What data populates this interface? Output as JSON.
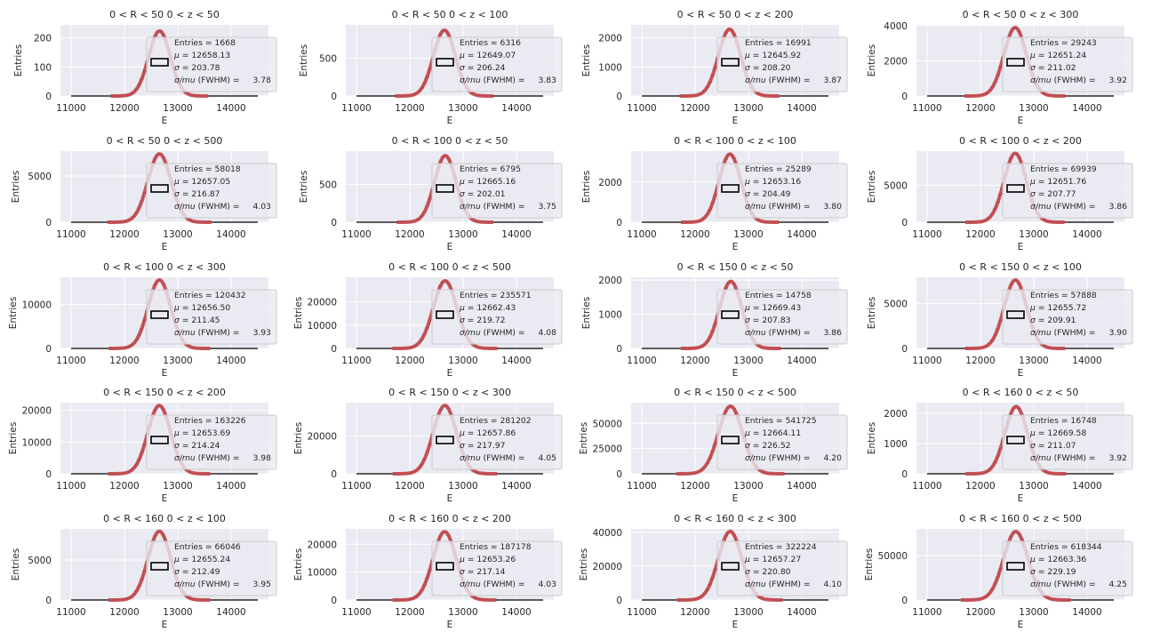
{
  "colors": {
    "plot_background": "#EAEAF2",
    "grid": "#FFFFFF",
    "histogram": "#000000",
    "fit": "#C44E52",
    "legend_box": "#000000",
    "text": "#262626"
  },
  "chart_data": [
    {
      "type": "histogram",
      "title": "0 < R < 50 0 < z < 50",
      "xlabel": "E",
      "ylabel": "Entries",
      "xlim": [
        10800,
        14700
      ],
      "xticks": [
        11000,
        12000,
        13000,
        14000
      ],
      "ylim": [
        0,
        245
      ],
      "yticks": [
        0,
        100,
        200
      ],
      "grid": true,
      "legend_placement": "right",
      "legend": {
        "entries_label": "Entries = 1668",
        "mu_label": "= 12658.13",
        "sigma_label": "= 203.78",
        "res_label": "(FWHM) =",
        "res_value": "3.78"
      },
      "fit": {
        "mu": 12658.13,
        "sigma": 203.78,
        "peak": 224
      }
    },
    {
      "type": "histogram",
      "title": "0 < R < 50 0 < z < 100",
      "xlabel": "E",
      "ylabel": "Entries",
      "xlim": [
        10800,
        14700
      ],
      "xticks": [
        11000,
        12000,
        13000,
        14000
      ],
      "ylim": [
        0,
        940
      ],
      "yticks": [
        0,
        500
      ],
      "grid": true,
      "legend_placement": "right",
      "legend": {
        "entries_label": "Entries = 6316",
        "mu_label": "= 12649.07",
        "sigma_label": "= 206.24",
        "res_label": "(FWHM) =",
        "res_value": "3.83"
      },
      "fit": {
        "mu": 12649.07,
        "sigma": 206.24,
        "peak": 870
      }
    },
    {
      "type": "histogram",
      "title": "0 < R < 50 0 < z < 200",
      "xlabel": "E",
      "ylabel": "Entries",
      "xlim": [
        10800,
        14700
      ],
      "xticks": [
        11000,
        12000,
        13000,
        14000
      ],
      "ylim": [
        0,
        2450
      ],
      "yticks": [
        0,
        1000,
        2000
      ],
      "grid": true,
      "legend_placement": "right",
      "legend": {
        "entries_label": "Entries = 16991",
        "mu_label": "= 12645.92",
        "sigma_label": "= 208.20",
        "res_label": "(FWHM) =",
        "res_value": "3.87"
      },
      "fit": {
        "mu": 12645.92,
        "sigma": 208.2,
        "peak": 2300
      }
    },
    {
      "type": "histogram",
      "title": "0 < R < 50 0 < z < 300",
      "xlabel": "E",
      "ylabel": "Entries",
      "xlim": [
        10800,
        14700
      ],
      "xticks": [
        11000,
        12000,
        13000,
        14000
      ],
      "ylim": [
        0,
        4050
      ],
      "yticks": [
        0,
        2000,
        4000
      ],
      "grid": true,
      "legend_placement": "right",
      "legend": {
        "entries_label": "Entries = 29243",
        "mu_label": "= 12651.24",
        "sigma_label": "= 211.02",
        "res_label": "(FWHM) =",
        "res_value": "3.92"
      },
      "fit": {
        "mu": 12651.24,
        "sigma": 211.02,
        "peak": 3900
      }
    },
    {
      "type": "histogram",
      "title": "0 < R < 50 0 < z < 500",
      "xlabel": "E",
      "ylabel": "Entries",
      "xlim": [
        10800,
        14700
      ],
      "xticks": [
        11000,
        12000,
        13000,
        14000
      ],
      "ylim": [
        0,
        7700
      ],
      "yticks": [
        0,
        5000
      ],
      "grid": true,
      "legend_placement": "right",
      "legend": {
        "entries_label": "Entries = 58018",
        "mu_label": "= 12657.05",
        "sigma_label": "= 216.87",
        "res_label": "(FWHM) =",
        "res_value": "4.03"
      },
      "fit": {
        "mu": 12657.05,
        "sigma": 216.87,
        "peak": 7400
      }
    },
    {
      "type": "histogram",
      "title": "0 < R < 100 0 < z < 50",
      "xlabel": "E",
      "ylabel": "Entries",
      "xlim": [
        10800,
        14700
      ],
      "xticks": [
        11000,
        12000,
        13000,
        14000
      ],
      "ylim": [
        0,
        940
      ],
      "yticks": [
        0,
        500
      ],
      "grid": true,
      "legend_placement": "right",
      "legend": {
        "entries_label": "Entries = 6795",
        "mu_label": "= 12665.16",
        "sigma_label": "= 202.01",
        "res_label": "(FWHM) =",
        "res_value": "3.75"
      },
      "fit": {
        "mu": 12665.16,
        "sigma": 202.01,
        "peak": 880
      }
    },
    {
      "type": "histogram",
      "title": "0 < R < 100 0 < z < 100",
      "xlabel": "E",
      "ylabel": "Entries",
      "xlim": [
        10800,
        14700
      ],
      "xticks": [
        11000,
        12000,
        13000,
        14000
      ],
      "ylim": [
        0,
        3550
      ],
      "yticks": [
        0,
        2000
      ],
      "grid": true,
      "legend_placement": "right",
      "legend": {
        "entries_label": "Entries = 25289",
        "mu_label": "= 12653.16",
        "sigma_label": "= 204.49",
        "res_label": "(FWHM) =",
        "res_value": "3.80"
      },
      "fit": {
        "mu": 12653.16,
        "sigma": 204.49,
        "peak": 3400
      }
    },
    {
      "type": "histogram",
      "title": "0 < R < 100 0 < z < 200",
      "xlabel": "E",
      "ylabel": "Entries",
      "xlim": [
        10800,
        14700
      ],
      "xticks": [
        11000,
        12000,
        13000,
        14000
      ],
      "ylim": [
        0,
        9600
      ],
      "yticks": [
        0,
        5000
      ],
      "grid": true,
      "legend_placement": "right",
      "legend": {
        "entries_label": "Entries = 69939",
        "mu_label": "= 12651.76",
        "sigma_label": "= 207.77",
        "res_label": "(FWHM) =",
        "res_value": "3.86"
      },
      "fit": {
        "mu": 12651.76,
        "sigma": 207.77,
        "peak": 9300
      }
    },
    {
      "type": "histogram",
      "title": "0 < R < 100 0 < z < 300",
      "xlabel": "E",
      "ylabel": "Entries",
      "xlim": [
        10800,
        14700
      ],
      "xticks": [
        11000,
        12000,
        13000,
        14000
      ],
      "ylim": [
        0,
        16200
      ],
      "yticks": [
        0,
        10000
      ],
      "grid": true,
      "legend_placement": "right",
      "legend": {
        "entries_label": "Entries = 120432",
        "mu_label": "= 12656.50",
        "sigma_label": "= 211.45",
        "res_label": "(FWHM) =",
        "res_value": "3.93"
      },
      "fit": {
        "mu": 12656.5,
        "sigma": 211.45,
        "peak": 15600
      }
    },
    {
      "type": "histogram",
      "title": "0 < R < 100 0 < z < 500",
      "xlabel": "E",
      "ylabel": "Entries",
      "xlim": [
        10800,
        14700
      ],
      "xticks": [
        11000,
        12000,
        13000,
        14000
      ],
      "ylim": [
        0,
        30500
      ],
      "yticks": [
        0,
        10000,
        20000
      ],
      "grid": true,
      "legend_placement": "right",
      "legend": {
        "entries_label": "Entries = 235571",
        "mu_label": "= 12662.43",
        "sigma_label": "= 219.72",
        "res_label": "(FWHM) =",
        "res_value": "4.08"
      },
      "fit": {
        "mu": 12662.43,
        "sigma": 219.72,
        "peak": 29000
      }
    },
    {
      "type": "histogram",
      "title": "0 < R < 150 0 < z < 50",
      "xlabel": "E",
      "ylabel": "Entries",
      "xlim": [
        10800,
        14700
      ],
      "xticks": [
        11000,
        12000,
        13000,
        14000
      ],
      "ylim": [
        0,
        2080
      ],
      "yticks": [
        0,
        1000,
        2000
      ],
      "grid": true,
      "legend_placement": "right",
      "legend": {
        "entries_label": "Entries = 14758",
        "mu_label": "= 12669.43",
        "sigma_label": "= 207.83",
        "res_label": "(FWHM) =",
        "res_value": "3.86"
      },
      "fit": {
        "mu": 12669.43,
        "sigma": 207.83,
        "peak": 1960
      }
    },
    {
      "type": "histogram",
      "title": "0 < R < 150 0 < z < 100",
      "xlabel": "E",
      "ylabel": "Entries",
      "xlim": [
        10800,
        14700
      ],
      "xticks": [
        11000,
        12000,
        13000,
        14000
      ],
      "ylim": [
        0,
        7900
      ],
      "yticks": [
        0,
        5000
      ],
      "grid": true,
      "legend_placement": "right",
      "legend": {
        "entries_label": "Entries = 57888",
        "mu_label": "= 12655.72",
        "sigma_label": "= 209.91",
        "res_label": "(FWHM) =",
        "res_value": "3.90"
      },
      "fit": {
        "mu": 12655.72,
        "sigma": 209.91,
        "peak": 7600
      }
    },
    {
      "type": "histogram",
      "title": "0 < R < 150 0 < z < 200",
      "xlabel": "E",
      "ylabel": "Entries",
      "xlim": [
        10800,
        14700
      ],
      "xticks": [
        11000,
        12000,
        13000,
        14000
      ],
      "ylim": [
        0,
        22400
      ],
      "yticks": [
        0,
        10000,
        20000
      ],
      "grid": true,
      "legend_placement": "right",
      "legend": {
        "entries_label": "Entries = 163226",
        "mu_label": "= 12653.69",
        "sigma_label": "= 214.24",
        "res_label": "(FWHM) =",
        "res_value": "3.98"
      },
      "fit": {
        "mu": 12653.69,
        "sigma": 214.24,
        "peak": 21500
      }
    },
    {
      "type": "histogram",
      "title": "0 < R < 150 0 < z < 300",
      "xlabel": "E",
      "ylabel": "Entries",
      "xlim": [
        10800,
        14700
      ],
      "xticks": [
        11000,
        12000,
        13000,
        14000
      ],
      "ylim": [
        0,
        37500
      ],
      "yticks": [
        0,
        20000
      ],
      "grid": true,
      "legend_placement": "right",
      "legend": {
        "entries_label": "Entries = 281202",
        "mu_label": "= 12657.86",
        "sigma_label": "= 217.97",
        "res_label": "(FWHM) =",
        "res_value": "4.05"
      },
      "fit": {
        "mu": 12657.86,
        "sigma": 217.97,
        "peak": 36000
      }
    },
    {
      "type": "histogram",
      "title": "0 < R < 150 0 < z < 500",
      "xlabel": "E",
      "ylabel": "Entries",
      "xlim": [
        10800,
        14700
      ],
      "xticks": [
        11000,
        12000,
        13000,
        14000
      ],
      "ylim": [
        0,
        70500
      ],
      "yticks": [
        0,
        25000,
        50000
      ],
      "grid": true,
      "legend_placement": "right",
      "legend": {
        "entries_label": "Entries = 541725",
        "mu_label": "= 12664.11",
        "sigma_label": "= 226.52",
        "res_label": "(FWHM) =",
        "res_value": "4.20"
      },
      "fit": {
        "mu": 12664.11,
        "sigma": 226.52,
        "peak": 67000
      }
    },
    {
      "type": "histogram",
      "title": "0 < R < 160 0 < z < 50",
      "xlabel": "E",
      "ylabel": "Entries",
      "xlim": [
        10800,
        14700
      ],
      "xticks": [
        11000,
        12000,
        13000,
        14000
      ],
      "ylim": [
        0,
        2350
      ],
      "yticks": [
        0,
        1000,
        2000
      ],
      "grid": true,
      "legend_placement": "right",
      "legend": {
        "entries_label": "Entries = 16748",
        "mu_label": "= 12669.58",
        "sigma_label": "= 211.07",
        "res_label": "(FWHM) =",
        "res_value": "3.92"
      },
      "fit": {
        "mu": 12669.58,
        "sigma": 211.07,
        "peak": 2220
      }
    },
    {
      "type": "histogram",
      "title": "0 < R < 160 0 < z < 100",
      "xlabel": "E",
      "ylabel": "Entries",
      "xlim": [
        10800,
        14700
      ],
      "xticks": [
        11000,
        12000,
        13000,
        14000
      ],
      "ylim": [
        0,
        8900
      ],
      "yticks": [
        0,
        5000
      ],
      "grid": true,
      "legend_placement": "right",
      "legend": {
        "entries_label": "Entries = 66046",
        "mu_label": "= 12655.24",
        "sigma_label": "= 212.49",
        "res_label": "(FWHM) =",
        "res_value": "3.95"
      },
      "fit": {
        "mu": 12655.24,
        "sigma": 212.49,
        "peak": 8600
      }
    },
    {
      "type": "histogram",
      "title": "0 < R < 160 0 < z < 200",
      "xlabel": "E",
      "ylabel": "Entries",
      "xlim": [
        10800,
        14700
      ],
      "xticks": [
        11000,
        12000,
        13000,
        14000
      ],
      "ylim": [
        0,
        25500
      ],
      "yticks": [
        0,
        10000,
        20000
      ],
      "grid": true,
      "legend_placement": "right",
      "legend": {
        "entries_label": "Entries = 187178",
        "mu_label": "= 12653.26",
        "sigma_label": "= 217.14",
        "res_label": "(FWHM) =",
        "res_value": "4.03"
      },
      "fit": {
        "mu": 12653.26,
        "sigma": 217.14,
        "peak": 24500
      }
    },
    {
      "type": "histogram",
      "title": "0 < R < 160 0 < z < 300",
      "xlabel": "E",
      "ylabel": "Entries",
      "xlim": [
        10800,
        14700
      ],
      "xticks": [
        11000,
        12000,
        13000,
        14000
      ],
      "ylim": [
        0,
        42000
      ],
      "yticks": [
        0,
        20000,
        40000
      ],
      "grid": true,
      "legend_placement": "right",
      "legend": {
        "entries_label": "Entries = 322224",
        "mu_label": "= 12657.27",
        "sigma_label": "= 220.80",
        "res_label": "(FWHM) =",
        "res_value": "4.10"
      },
      "fit": {
        "mu": 12657.27,
        "sigma": 220.8,
        "peak": 40500
      }
    },
    {
      "type": "histogram",
      "title": "0 < R < 160 0 < z < 500",
      "xlabel": "E",
      "ylabel": "Entries",
      "xlim": [
        10800,
        14700
      ],
      "xticks": [
        11000,
        12000,
        13000,
        14000
      ],
      "ylim": [
        0,
        80000
      ],
      "yticks": [
        0,
        50000
      ],
      "grid": true,
      "legend_placement": "right",
      "legend": {
        "entries_label": "Entries = 618344",
        "mu_label": "= 12663.36",
        "sigma_label": "= 229.19",
        "res_label": "(FWHM) =",
        "res_value": "4.25"
      },
      "fit": {
        "mu": 12663.36,
        "sigma": 229.19,
        "peak": 77000
      }
    }
  ]
}
